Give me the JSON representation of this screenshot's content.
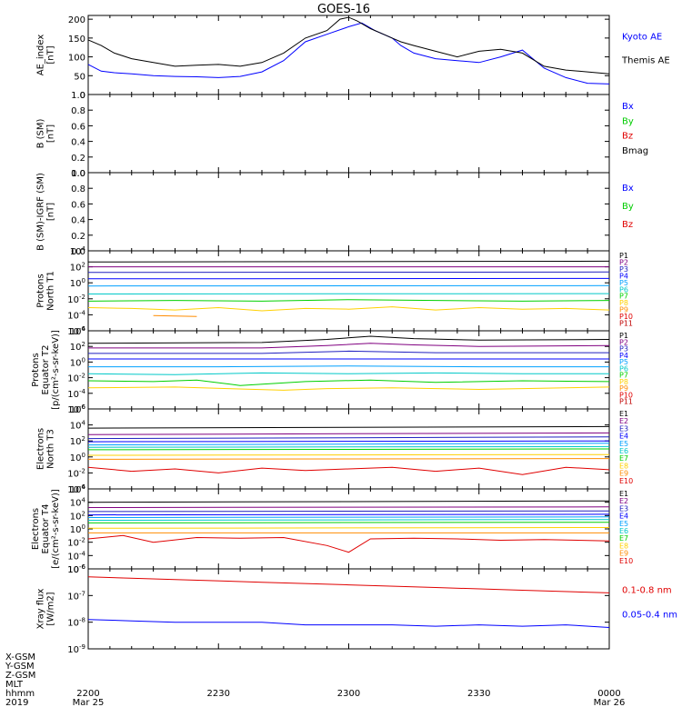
{
  "title": "GOES-16",
  "colors": {
    "black": "#000000",
    "blue": "#0000ff",
    "red": "#e00000",
    "green": "#00cc00",
    "violet": "#800080",
    "indigo": "#2020c0",
    "cyan": "#00a0ff",
    "teal": "#00c8c8",
    "lime": "#00d000",
    "yellow": "#ffd000",
    "orange": "#ff8c00",
    "darkred": "#c00000"
  },
  "xaxis": {
    "ticks": [
      "2200",
      "2230",
      "2300",
      "2330",
      "0000"
    ],
    "dates": [
      "Mar 25",
      "Mar 26"
    ],
    "range_minutes": [
      0,
      120
    ],
    "row_labels": [
      "X-GSM",
      "Y-GSM",
      "Z-GSM",
      "MLT",
      "hhmm",
      "2019"
    ]
  },
  "chart_data": [
    {
      "type": "line",
      "ylabel": "AE_index\n[nT]",
      "ylim": [
        0,
        210
      ],
      "yticks": [
        "0",
        "50",
        "100",
        "150",
        "200"
      ],
      "grid": false,
      "legend_position": "right",
      "series": [
        {
          "name": "Kyoto AE",
          "color": "blue",
          "x": [
            0,
            3,
            6,
            10,
            15,
            20,
            25,
            30,
            35,
            40,
            45,
            50,
            55,
            60,
            63,
            66,
            70,
            72,
            75,
            80,
            85,
            90,
            95,
            100,
            105,
            110,
            115,
            120
          ],
          "y": [
            80,
            62,
            58,
            55,
            50,
            48,
            47,
            45,
            48,
            60,
            90,
            140,
            160,
            180,
            190,
            170,
            150,
            130,
            110,
            95,
            90,
            85,
            100,
            118,
            70,
            45,
            30,
            28
          ]
        },
        {
          "name": "Themis AE",
          "color": "black",
          "x": [
            0,
            3,
            6,
            10,
            15,
            20,
            25,
            30,
            35,
            40,
            45,
            50,
            55,
            58,
            60,
            62,
            65,
            68,
            70,
            72,
            75,
            80,
            85,
            90,
            95,
            100,
            105,
            110,
            115,
            120
          ],
          "y": [
            145,
            130,
            110,
            95,
            85,
            75,
            78,
            80,
            75,
            85,
            110,
            150,
            170,
            200,
            205,
            195,
            175,
            160,
            150,
            140,
            130,
            115,
            100,
            115,
            120,
            110,
            75,
            65,
            60,
            55
          ]
        }
      ]
    },
    {
      "type": "line",
      "ylabel": "B (SM)\n[nT]",
      "ylim": [
        0,
        1.0
      ],
      "yticks": [
        "0.0",
        "0.2",
        "0.4",
        "0.6",
        "0.8",
        "1.0"
      ],
      "grid": false,
      "legend_position": "right",
      "series": [
        {
          "name": "Bx",
          "color": "blue",
          "x": [],
          "y": []
        },
        {
          "name": "By",
          "color": "green",
          "x": [],
          "y": []
        },
        {
          "name": "Bz",
          "color": "red",
          "x": [],
          "y": []
        },
        {
          "name": "Bmag",
          "color": "black",
          "x": [],
          "y": []
        }
      ]
    },
    {
      "type": "line",
      "ylabel": "B (SM)-IGRF (SM)\n[nT]",
      "ylim": [
        0,
        1.0
      ],
      "yticks": [
        "0.0",
        "0.2",
        "0.4",
        "0.6",
        "0.8",
        "1.0"
      ],
      "grid": false,
      "legend_position": "right",
      "series": [
        {
          "name": "Bx",
          "color": "blue",
          "x": [],
          "y": []
        },
        {
          "name": "By",
          "color": "green",
          "x": [],
          "y": []
        },
        {
          "name": "Bz",
          "color": "red",
          "x": [],
          "y": []
        }
      ]
    },
    {
      "type": "line",
      "ylabel": "Protons\nNorth T1",
      "scale": "log",
      "ylim": [
        -6,
        4
      ],
      "yticks": [
        "10^4",
        "10^2",
        "10^0",
        "10^-2",
        "10^-4",
        "10^-6"
      ],
      "grid": false,
      "legend_position": "right",
      "series": [
        {
          "name": "P1",
          "color": "black",
          "x": [
            0,
            120
          ],
          "y": [
            2.6,
            2.7
          ]
        },
        {
          "name": "P2",
          "color": "violet",
          "x": [
            0,
            120
          ],
          "y": [
            2.0,
            2.0
          ]
        },
        {
          "name": "P3",
          "color": "indigo",
          "x": [
            0,
            120
          ],
          "y": [
            1.3,
            1.35
          ]
        },
        {
          "name": "P4",
          "color": "blue",
          "x": [
            0,
            120
          ],
          "y": [
            0.5,
            0.55
          ]
        },
        {
          "name": "P5",
          "color": "cyan",
          "x": [
            0,
            120
          ],
          "y": [
            -0.4,
            -0.35
          ]
        },
        {
          "name": "P6",
          "color": "teal",
          "x": [
            0,
            120
          ],
          "y": [
            -1.4,
            -1.35
          ]
        },
        {
          "name": "P7",
          "color": "lime",
          "x": [
            0,
            20,
            40,
            60,
            80,
            100,
            120
          ],
          "y": [
            -2.3,
            -2.2,
            -2.3,
            -2.1,
            -2.2,
            -2.3,
            -2.2
          ]
        },
        {
          "name": "P8",
          "color": "yellow",
          "x": [
            0,
            10,
            20,
            30,
            40,
            50,
            60,
            70,
            80,
            90,
            100,
            110,
            120
          ],
          "y": [
            -3.1,
            -3.2,
            -3.4,
            -3.1,
            -3.5,
            -3.2,
            -3.3,
            -3.0,
            -3.4,
            -3.1,
            -3.3,
            -3.2,
            -3.4
          ]
        },
        {
          "name": "P9",
          "color": "orange",
          "x": [
            15,
            25
          ],
          "y": [
            -4.1,
            -4.2
          ]
        },
        {
          "name": "P10",
          "color": "red",
          "x": [],
          "y": []
        },
        {
          "name": "P11",
          "color": "darkred",
          "x": [],
          "y": []
        }
      ]
    },
    {
      "type": "line",
      "ylabel": "Protons\nEquator T2\n[p/(cm²-s-sr-keV)]",
      "scale": "log",
      "ylim": [
        -6,
        4
      ],
      "yticks": [
        "10^4",
        "10^2",
        "10^0",
        "10^-2",
        "10^-4",
        "10^-6"
      ],
      "grid": false,
      "legend_position": "right",
      "series": [
        {
          "name": "P1",
          "color": "black",
          "x": [
            0,
            40,
            55,
            65,
            75,
            90,
            120
          ],
          "y": [
            2.4,
            2.5,
            2.9,
            3.3,
            3.0,
            2.8,
            2.9
          ]
        },
        {
          "name": "P2",
          "color": "violet",
          "x": [
            0,
            40,
            55,
            65,
            75,
            90,
            120
          ],
          "y": [
            1.8,
            1.8,
            2.1,
            2.4,
            2.2,
            2.0,
            2.1
          ]
        },
        {
          "name": "P3",
          "color": "indigo",
          "x": [
            0,
            40,
            60,
            80,
            120
          ],
          "y": [
            1.1,
            1.1,
            1.4,
            1.2,
            1.2
          ]
        },
        {
          "name": "P4",
          "color": "blue",
          "x": [
            0,
            120
          ],
          "y": [
            0.4,
            0.4
          ]
        },
        {
          "name": "P5",
          "color": "cyan",
          "x": [
            0,
            30,
            60,
            90,
            120
          ],
          "y": [
            -0.6,
            -0.6,
            -0.5,
            -0.6,
            -0.6
          ]
        },
        {
          "name": "P6",
          "color": "teal",
          "x": [
            0,
            20,
            40,
            60,
            80,
            100,
            120
          ],
          "y": [
            -1.5,
            -1.6,
            -1.4,
            -1.5,
            -1.4,
            -1.5,
            -1.5
          ]
        },
        {
          "name": "P7",
          "color": "lime",
          "x": [
            0,
            15,
            25,
            35,
            50,
            65,
            80,
            100,
            120
          ],
          "y": [
            -2.4,
            -2.5,
            -2.3,
            -3.0,
            -2.5,
            -2.3,
            -2.6,
            -2.4,
            -2.5
          ]
        },
        {
          "name": "P8",
          "color": "yellow",
          "x": [
            0,
            20,
            45,
            55,
            70,
            90,
            120
          ],
          "y": [
            -3.3,
            -3.2,
            -3.6,
            -3.4,
            -3.3,
            -3.5,
            -3.2
          ]
        },
        {
          "name": "P9",
          "color": "orange",
          "x": [],
          "y": []
        },
        {
          "name": "P10",
          "color": "red",
          "x": [],
          "y": []
        },
        {
          "name": "P11",
          "color": "darkred",
          "x": [],
          "y": []
        }
      ]
    },
    {
      "type": "line",
      "ylabel": "Electrons\nNorth T3",
      "scale": "log",
      "ylim": [
        -4,
        6
      ],
      "yticks": [
        "10^6",
        "10^4",
        "10^2",
        "10^0",
        "10^-2",
        "10^-4"
      ],
      "grid": false,
      "legend_position": "right",
      "series": [
        {
          "name": "E1",
          "color": "black",
          "x": [
            0,
            120
          ],
          "y": [
            3.6,
            3.8
          ]
        },
        {
          "name": "E2",
          "color": "violet",
          "x": [
            0,
            120
          ],
          "y": [
            2.8,
            3.0
          ]
        },
        {
          "name": "E3",
          "color": "indigo",
          "x": [
            0,
            120
          ],
          "y": [
            2.3,
            2.5
          ]
        },
        {
          "name": "E4",
          "color": "blue",
          "x": [
            0,
            120
          ],
          "y": [
            1.9,
            2.0
          ]
        },
        {
          "name": "E5",
          "color": "cyan",
          "x": [
            0,
            120
          ],
          "y": [
            1.5,
            1.7
          ]
        },
        {
          "name": "E6",
          "color": "teal",
          "x": [
            0,
            120
          ],
          "y": [
            1.2,
            1.3
          ]
        },
        {
          "name": "E7",
          "color": "lime",
          "x": [
            0,
            120
          ],
          "y": [
            0.9,
            1.0
          ]
        },
        {
          "name": "E8",
          "color": "yellow",
          "x": [
            0,
            120
          ],
          "y": [
            0.2,
            0.3
          ]
        },
        {
          "name": "E9",
          "color": "orange",
          "x": [
            0,
            120
          ],
          "y": [
            -0.3,
            -0.2
          ]
        },
        {
          "name": "E10",
          "color": "red",
          "x": [
            0,
            10,
            20,
            30,
            40,
            50,
            60,
            70,
            80,
            90,
            100,
            110,
            120
          ],
          "y": [
            -1.3,
            -1.8,
            -1.5,
            -2.0,
            -1.4,
            -1.7,
            -1.5,
            -1.3,
            -1.8,
            -1.4,
            -2.2,
            -1.3,
            -1.6
          ]
        }
      ]
    },
    {
      "type": "line",
      "ylabel": "Electrons\nEquator T4\n[e/(cm²-s-sr-keV)]",
      "scale": "log",
      "ylim": [
        -6,
        6
      ],
      "yticks": [
        "10^6",
        "10^4",
        "10^2",
        "10^0",
        "10^-2",
        "10^-4",
        "10^-6"
      ],
      "grid": false,
      "legend_position": "right",
      "series": [
        {
          "name": "E1",
          "color": "black",
          "x": [
            0,
            120
          ],
          "y": [
            4.0,
            4.2
          ]
        },
        {
          "name": "E2",
          "color": "violet",
          "x": [
            0,
            120
          ],
          "y": [
            3.2,
            3.3
          ]
        },
        {
          "name": "E3",
          "color": "indigo",
          "x": [
            0,
            120
          ],
          "y": [
            2.6,
            2.7
          ]
        },
        {
          "name": "E4",
          "color": "blue",
          "x": [
            0,
            120
          ],
          "y": [
            2.1,
            2.2
          ]
        },
        {
          "name": "E5",
          "color": "cyan",
          "x": [
            0,
            120
          ],
          "y": [
            1.7,
            1.8
          ]
        },
        {
          "name": "E6",
          "color": "teal",
          "x": [
            0,
            120
          ],
          "y": [
            1.3,
            1.4
          ]
        },
        {
          "name": "E7",
          "color": "lime",
          "x": [
            0,
            120
          ],
          "y": [
            0.9,
            1.0
          ]
        },
        {
          "name": "E8",
          "color": "yellow",
          "x": [
            0,
            120
          ],
          "y": [
            0.1,
            0.2
          ]
        },
        {
          "name": "E9",
          "color": "orange",
          "x": [
            0,
            120
          ],
          "y": [
            -0.6,
            -0.6
          ]
        },
        {
          "name": "E10",
          "color": "red",
          "x": [
            0,
            8,
            15,
            25,
            35,
            45,
            55,
            60,
            65,
            75,
            85,
            95,
            105,
            120
          ],
          "y": [
            -1.5,
            -1.0,
            -2.0,
            -1.3,
            -1.4,
            -1.3,
            -2.5,
            -3.5,
            -1.5,
            -1.4,
            -1.5,
            -1.7,
            -1.6,
            -1.8
          ]
        }
      ]
    },
    {
      "type": "line",
      "ylabel": "Xray flux\n[W/m2]",
      "scale": "log",
      "ylim": [
        -9,
        -6
      ],
      "yticks": [
        "10^-6",
        "10^-7",
        "10^-8",
        "10^-9"
      ],
      "grid": false,
      "legend_position": "right",
      "series": [
        {
          "name": "0.1-0.8 nm",
          "color": "red",
          "x": [
            0,
            20,
            40,
            60,
            80,
            100,
            120
          ],
          "y": [
            -6.3,
            -6.4,
            -6.5,
            -6.6,
            -6.7,
            -6.8,
            -6.9
          ]
        },
        {
          "name": "0.05-0.4 nm",
          "color": "blue",
          "x": [
            0,
            10,
            20,
            30,
            40,
            50,
            60,
            70,
            80,
            90,
            100,
            110,
            120
          ],
          "y": [
            -7.9,
            -7.95,
            -8.0,
            -8.0,
            -8.0,
            -8.1,
            -8.1,
            -8.1,
            -8.15,
            -8.1,
            -8.15,
            -8.1,
            -8.2
          ]
        }
      ]
    }
  ]
}
